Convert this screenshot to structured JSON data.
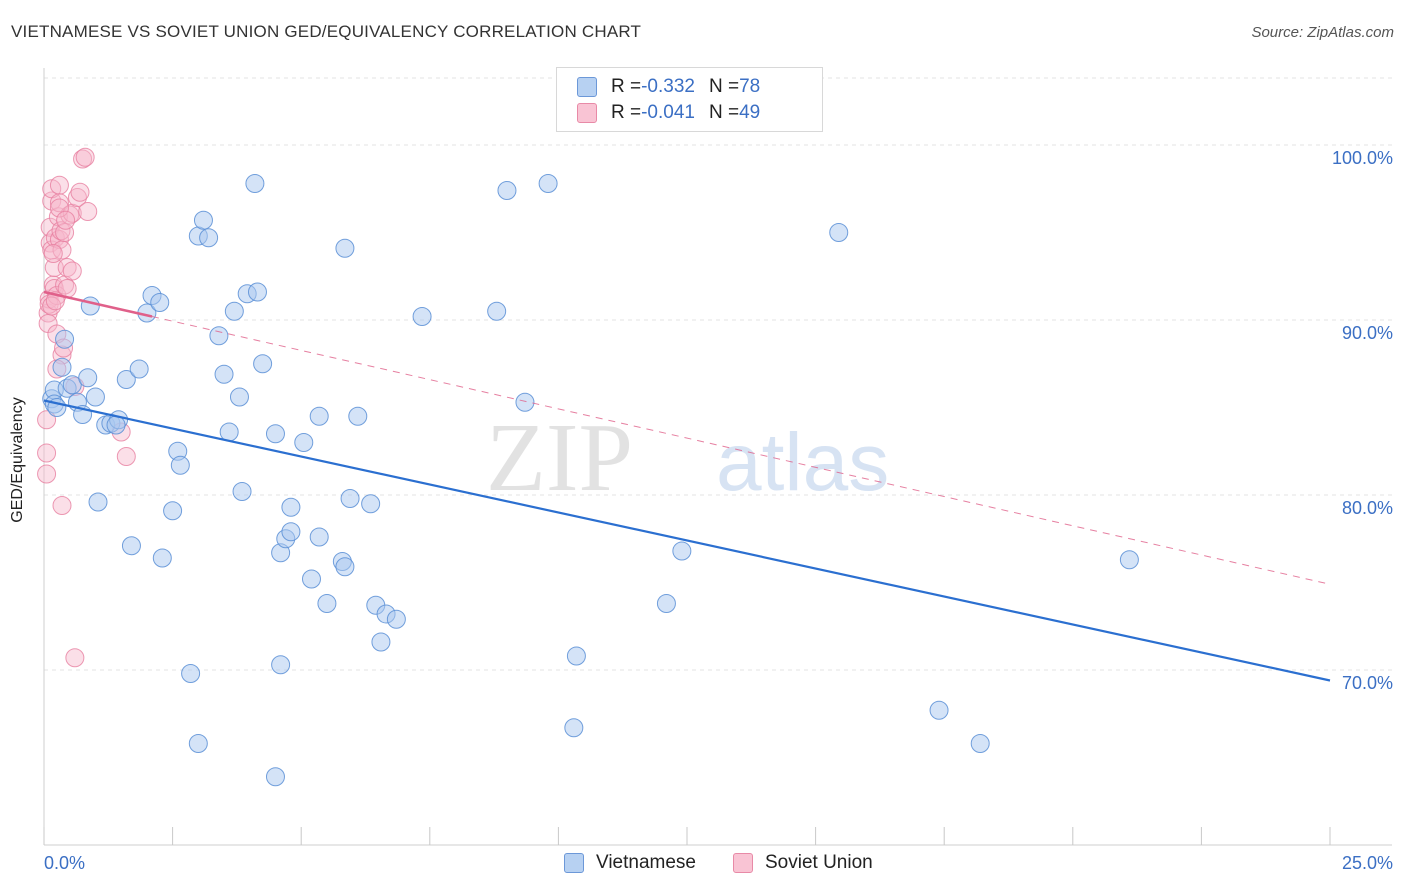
{
  "header": {
    "title": "VIETNAMESE VS SOVIET UNION GED/EQUIVALENCY CORRELATION CHART",
    "source": "Source: ZipAtlas.com"
  },
  "legend": {
    "vietnamese": {
      "r_label": "R = ",
      "r_value": "-0.332",
      "n_label": "N = ",
      "n_value": "78"
    },
    "soviet": {
      "r_label": "R = ",
      "r_value": "-0.041",
      "n_label": "N = ",
      "n_value": "49"
    }
  },
  "bottom_legend": [
    "Vietnamese",
    "Soviet Union"
  ],
  "watermark": {
    "zip": "ZIP",
    "atlas": "atlas"
  },
  "colors": {
    "blue_fill": "#a9c8ef",
    "blue_stroke": "#5b8fd6",
    "blue_line": "#2b6fd0",
    "pink_fill": "#f7b8cc",
    "pink_stroke": "#e77fa0",
    "pink_line": "#e0608a",
    "grid": "#e3e3e3",
    "tick_text": "#3b6fc4"
  },
  "chart_data": {
    "type": "scatter",
    "title": "VIETNAMESE VS SOVIET UNION GED/EQUIVALENCY CORRELATION CHART",
    "xlabel": "",
    "ylabel": "GED/Equivalency",
    "xlim": [
      0,
      25
    ],
    "ylim": [
      60,
      104
    ],
    "x_ticks": [
      "0.0%",
      "25.0%"
    ],
    "y_ticks": [
      {
        "value": 70,
        "label": "70.0%"
      },
      {
        "value": 80,
        "label": "80.0%"
      },
      {
        "value": 90,
        "label": "90.0%"
      },
      {
        "value": 100,
        "label": "100.0%"
      }
    ],
    "grid": true,
    "legend_position": "top-center",
    "series": [
      {
        "name": "Vietnamese",
        "color": "#a9c8ef",
        "trend": {
          "x": [
            0,
            25
          ],
          "y": [
            85.4,
            69.4
          ],
          "style": "solid"
        },
        "points": [
          [
            0.15,
            85.5
          ],
          [
            0.2,
            86.0
          ],
          [
            0.2,
            85.2
          ],
          [
            0.35,
            87.3
          ],
          [
            0.4,
            88.9
          ],
          [
            0.45,
            86.1
          ],
          [
            0.55,
            86.3
          ],
          [
            0.65,
            85.3
          ],
          [
            0.75,
            84.6
          ],
          [
            0.85,
            86.7
          ],
          [
            1.0,
            85.6
          ],
          [
            1.2,
            84.0
          ],
          [
            1.3,
            84.1
          ],
          [
            1.45,
            84.3
          ],
          [
            1.6,
            86.6
          ],
          [
            1.85,
            87.2
          ],
          [
            2.0,
            90.4
          ],
          [
            2.1,
            91.4
          ],
          [
            2.25,
            91.0
          ],
          [
            2.5,
            79.1
          ],
          [
            2.6,
            82.5
          ],
          [
            1.05,
            79.6
          ],
          [
            1.7,
            77.1
          ],
          [
            2.3,
            76.4
          ],
          [
            2.65,
            81.7
          ],
          [
            3.0,
            94.8
          ],
          [
            3.1,
            95.7
          ],
          [
            3.2,
            94.7
          ],
          [
            3.4,
            89.1
          ],
          [
            3.5,
            86.9
          ],
          [
            3.6,
            83.6
          ],
          [
            3.7,
            90.5
          ],
          [
            3.8,
            85.6
          ],
          [
            3.85,
            80.2
          ],
          [
            3.95,
            91.5
          ],
          [
            4.15,
            91.6
          ],
          [
            4.1,
            97.8
          ],
          [
            4.25,
            87.5
          ],
          [
            4.5,
            83.5
          ],
          [
            4.6,
            70.3
          ],
          [
            4.6,
            76.7
          ],
          [
            4.7,
            77.5
          ],
          [
            4.8,
            77.9
          ],
          [
            4.8,
            79.3
          ],
          [
            5.05,
            83.0
          ],
          [
            5.2,
            75.2
          ],
          [
            5.35,
            77.6
          ],
          [
            5.35,
            84.5
          ],
          [
            5.5,
            73.8
          ],
          [
            5.85,
            94.1
          ],
          [
            5.8,
            76.2
          ],
          [
            5.85,
            75.9
          ],
          [
            5.95,
            79.8
          ],
          [
            6.1,
            84.5
          ],
          [
            6.35,
            79.5
          ],
          [
            6.45,
            73.7
          ],
          [
            6.55,
            71.6
          ],
          [
            6.65,
            73.2
          ],
          [
            6.85,
            72.9
          ],
          [
            7.35,
            90.2
          ],
          [
            8.8,
            90.5
          ],
          [
            9.0,
            97.4
          ],
          [
            9.35,
            85.3
          ],
          [
            9.8,
            97.8
          ],
          [
            10.3,
            66.7
          ],
          [
            10.35,
            70.8
          ],
          [
            12.1,
            73.8
          ],
          [
            12.4,
            76.8
          ],
          [
            15.45,
            95.0
          ],
          [
            17.4,
            67.7
          ],
          [
            18.2,
            65.8
          ],
          [
            21.1,
            76.3
          ],
          [
            3.0,
            65.8
          ],
          [
            2.85,
            69.8
          ],
          [
            4.5,
            63.9
          ],
          [
            0.9,
            90.8
          ],
          [
            1.4,
            84.0
          ],
          [
            0.25,
            85.0
          ]
        ]
      },
      {
        "name": "Soviet Union",
        "color": "#f7b8cc",
        "trend": {
          "x": [
            0,
            2.1
          ],
          "y": [
            91.6,
            90.2
          ],
          "style": "solid"
        },
        "trend_extended": {
          "x": [
            2.1,
            25
          ],
          "y": [
            90.2,
            74.9
          ],
          "style": "dashed"
        },
        "points": [
          [
            0.05,
            84.3
          ],
          [
            0.05,
            81.2
          ],
          [
            0.05,
            82.4
          ],
          [
            0.08,
            90.4
          ],
          [
            0.08,
            89.8
          ],
          [
            0.1,
            91.2
          ],
          [
            0.1,
            90.9
          ],
          [
            0.12,
            94.4
          ],
          [
            0.12,
            95.3
          ],
          [
            0.15,
            96.8
          ],
          [
            0.15,
            97.5
          ],
          [
            0.15,
            94.0
          ],
          [
            0.18,
            92.0
          ],
          [
            0.2,
            91.8
          ],
          [
            0.2,
            93.0
          ],
          [
            0.22,
            94.7
          ],
          [
            0.25,
            89.2
          ],
          [
            0.25,
            91.4
          ],
          [
            0.28,
            95.9
          ],
          [
            0.3,
            94.6
          ],
          [
            0.3,
            97.7
          ],
          [
            0.3,
            96.7
          ],
          [
            0.33,
            95.1
          ],
          [
            0.35,
            94.0
          ],
          [
            0.35,
            88.0
          ],
          [
            0.38,
            88.4
          ],
          [
            0.4,
            92.0
          ],
          [
            0.4,
            95.0
          ],
          [
            0.45,
            93.0
          ],
          [
            0.45,
            91.8
          ],
          [
            0.5,
            96.0
          ],
          [
            0.55,
            96.1
          ],
          [
            0.55,
            92.8
          ],
          [
            0.6,
            86.2
          ],
          [
            0.65,
            97.0
          ],
          [
            0.7,
            97.3
          ],
          [
            0.75,
            99.2
          ],
          [
            0.8,
            99.3
          ],
          [
            0.85,
            96.2
          ],
          [
            1.5,
            83.6
          ],
          [
            1.6,
            82.2
          ],
          [
            0.35,
            79.4
          ],
          [
            0.6,
            70.7
          ],
          [
            0.25,
            87.2
          ],
          [
            0.15,
            90.8
          ],
          [
            0.22,
            91.1
          ],
          [
            0.18,
            93.8
          ],
          [
            0.3,
            96.4
          ],
          [
            0.42,
            95.7
          ]
        ]
      }
    ]
  }
}
